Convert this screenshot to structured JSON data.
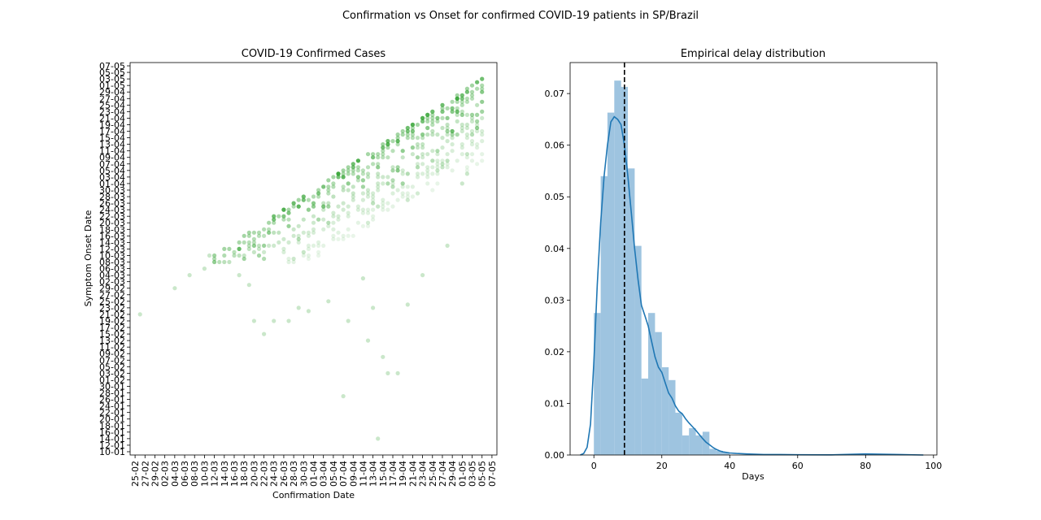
{
  "figure": {
    "suptitle": "Confirmation vs Onset for confirmed COVID-19 patients in SP/Brazil"
  },
  "chart_data": [
    {
      "type": "scatter",
      "title": "COVID-19 Confirmed Cases",
      "xlabel": "Confirmation Date",
      "ylabel": "Symptom Onset Date",
      "x_tick_labels": [
        "25-02",
        "27-02",
        "29-02",
        "02-03",
        "04-03",
        "06-03",
        "08-03",
        "10-03",
        "12-03",
        "14-03",
        "16-03",
        "18-03",
        "20-03",
        "22-03",
        "24-03",
        "26-03",
        "28-03",
        "30-03",
        "01-04",
        "03-04",
        "05-04",
        "07-04",
        "09-04",
        "11-04",
        "13-04",
        "15-04",
        "17-04",
        "19-04",
        "21-04",
        "23-04",
        "25-04",
        "27-04",
        "29-04",
        "01-05",
        "03-05",
        "05-05",
        "07-05"
      ],
      "y_tick_labels": [
        "10-01",
        "12-01",
        "14-01",
        "16-01",
        "18-01",
        "20-01",
        "22-01",
        "24-01",
        "26-01",
        "28-01",
        "30-01",
        "01-02",
        "03-02",
        "05-02",
        "07-02",
        "09-02",
        "11-02",
        "13-02",
        "15-02",
        "17-02",
        "19-02",
        "21-02",
        "23-02",
        "25-02",
        "27-02",
        "29-02",
        "02-03",
        "04-03",
        "06-03",
        "08-03",
        "10-03",
        "12-03",
        "14-03",
        "16-03",
        "18-03",
        "20-03",
        "22-03",
        "24-03",
        "26-03",
        "28-03",
        "30-03",
        "01-04",
        "03-04",
        "05-04",
        "07-04",
        "09-04",
        "11-04",
        "13-04",
        "15-04",
        "17-04",
        "19-04",
        "21-04",
        "23-04",
        "25-04",
        "27-04",
        "29-04",
        "01-05",
        "03-05",
        "05-05",
        "07-05"
      ],
      "x_range": [
        "24-02",
        "08-05"
      ],
      "y_range": [
        "09-01",
        "08-05"
      ],
      "point_color": "#2ca02c",
      "description_of_density": "Cluster of points between onset ~10-03 and ~03-05, lying below the diagonal confirmation = onset, with sparse outliers down to ~14-01",
      "points": [
        [
          "26-02",
          "21-02"
        ],
        [
          "04-03",
          "29-02"
        ],
        [
          "07-03",
          "04-03"
        ],
        [
          "10-03",
          "06-03"
        ],
        [
          "11-03",
          "10-03"
        ],
        [
          "12-03",
          "08-03"
        ],
        [
          "17-03",
          "04-03"
        ],
        [
          "19-03",
          "01-03"
        ],
        [
          "20-03",
          "19-02"
        ],
        [
          "22-03",
          "15-02"
        ],
        [
          "24-03",
          "19-02"
        ],
        [
          "27-03",
          "19-02"
        ],
        [
          "29-03",
          "23-02"
        ],
        [
          "31-03",
          "22-02"
        ],
        [
          "04-04",
          "25-02"
        ],
        [
          "08-04",
          "19-02"
        ],
        [
          "11-04",
          "03-03"
        ],
        [
          "12-04",
          "13-02"
        ],
        [
          "15-04",
          "08-02"
        ],
        [
          "16-04",
          "03-02"
        ],
        [
          "18-04",
          "03-02"
        ],
        [
          "14-04",
          "14-01"
        ],
        [
          "20-04",
          "24-02"
        ],
        [
          "23-04",
          "04-03"
        ],
        [
          "07-04",
          "27-01"
        ],
        [
          "13-04",
          "23-02"
        ],
        [
          "28-04",
          "13-03"
        ],
        [
          "02-05",
          "04-04"
        ],
        [
          "01-05",
          "01-04"
        ]
      ]
    },
    {
      "type": "bar",
      "subtype": "histogram_with_kde",
      "title": "Empirical delay distribution",
      "xlabel": "Days",
      "ylabel": "",
      "xlim": [
        -7,
        101
      ],
      "ylim": [
        0,
        0.076
      ],
      "x_ticks": [
        0,
        20,
        40,
        60,
        80,
        100
      ],
      "y_ticks": [
        0.0,
        0.01,
        0.02,
        0.03,
        0.04,
        0.05,
        0.06,
        0.07
      ],
      "x_tick_labels": [
        "0",
        "20",
        "40",
        "60",
        "80",
        "100"
      ],
      "y_tick_labels": [
        "0.00",
        "0.01",
        "0.02",
        "0.03",
        "0.04",
        "0.05",
        "0.06",
        "0.07"
      ],
      "bar_color": "#9ec4e0",
      "kde_color": "#1f77b4",
      "bin_width": 2,
      "bins_start": [
        0,
        2,
        4,
        6,
        8,
        10,
        12,
        14,
        16,
        18,
        20,
        22,
        24,
        26,
        28,
        30,
        32,
        34,
        36,
        38
      ],
      "bin_values": [
        0.0275,
        0.054,
        0.0663,
        0.0725,
        0.0713,
        0.0555,
        0.0405,
        0.0148,
        0.0275,
        0.0238,
        0.017,
        0.0145,
        0.0082,
        0.0038,
        0.0052,
        0.0038,
        0.0045,
        0.0012,
        0.0008,
        0.0005
      ],
      "kde_x": [
        -4,
        -3,
        -2,
        -1,
        0,
        1,
        2,
        3,
        4,
        5,
        6,
        7,
        8,
        9,
        10,
        11,
        12,
        13,
        14,
        15,
        16,
        17,
        18,
        19,
        20,
        21,
        22,
        23,
        24,
        25,
        26,
        27,
        28,
        29,
        30,
        31,
        32,
        33,
        34,
        35,
        36,
        37,
        38,
        39,
        40,
        42,
        45,
        50,
        55,
        60,
        70,
        80,
        90,
        97
      ],
      "kde_y": [
        0.0,
        0.0003,
        0.0015,
        0.006,
        0.018,
        0.033,
        0.045,
        0.054,
        0.06,
        0.0645,
        0.0655,
        0.065,
        0.064,
        0.06,
        0.054,
        0.047,
        0.04,
        0.034,
        0.029,
        0.027,
        0.025,
        0.022,
        0.019,
        0.017,
        0.016,
        0.014,
        0.012,
        0.011,
        0.0095,
        0.0085,
        0.008,
        0.007,
        0.0062,
        0.0055,
        0.0048,
        0.004,
        0.0032,
        0.0025,
        0.002,
        0.0015,
        0.0011,
        0.0008,
        0.0006,
        0.0005,
        0.0004,
        0.0003,
        0.0002,
        0.0001,
        0.0001,
        5e-05,
        3e-05,
        0.0002,
        0.0001,
        0.0
      ],
      "vline": {
        "x": 9,
        "style": "dashed",
        "color": "#000000"
      }
    }
  ]
}
